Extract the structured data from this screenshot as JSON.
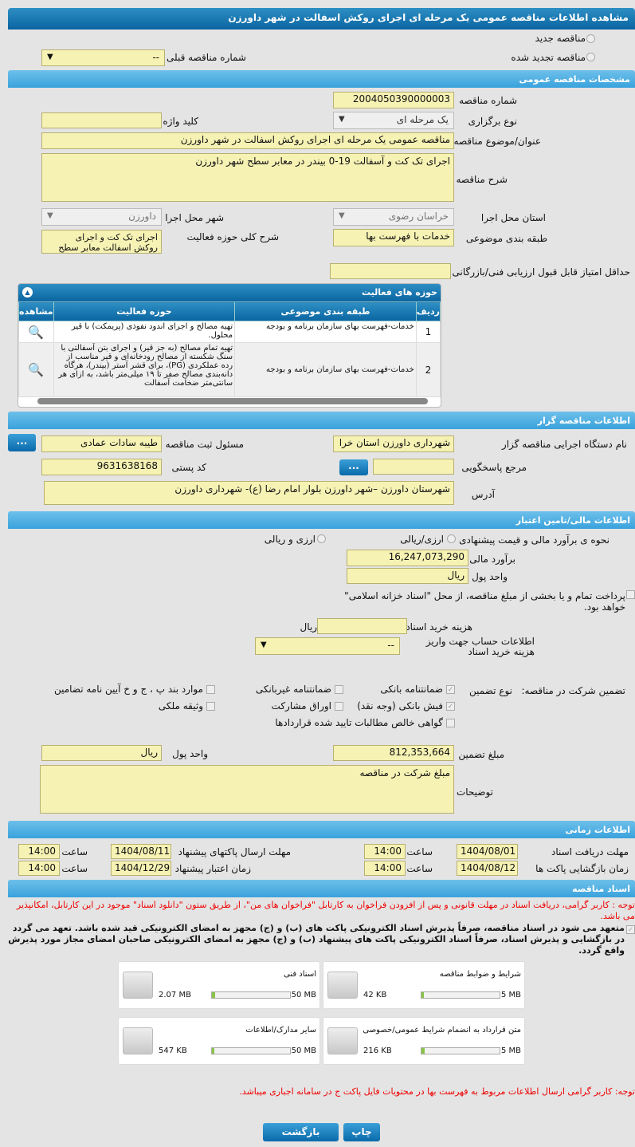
{
  "title": "مشاهده اطلاعات مناقصه عمومی یک مرحله ای اجرای روکش اسفالت در شهر داورزن",
  "tender_type": {
    "new": "مناقصه جدید",
    "renewed": "مناقصه تجدید شده",
    "prev_label": "شماره مناقصه قبلی",
    "prev_value": "--"
  },
  "general": {
    "header": "مشخصات مناقصه عمومی",
    "number_label": "شماره مناقصه",
    "number": "2004050390000003",
    "holding_label": "نوع برگزاری",
    "holding": "یک مرحله ای",
    "keyword_label": "کلید واژه",
    "keyword": "",
    "subject_label": "عنوان/موضوع مناقصه",
    "subject": "مناقصه عمومی یک مرحله ای اجرای روکش اسفالت در شهر داورزن",
    "desc_label": "شرح مناقصه",
    "desc": "اجرای تک کت و آسفالت 19-0 بیندر در معابر سطح شهر داورزن",
    "province_label": "استان محل اجرا",
    "province": "خراسان رضوی",
    "city_label": "شهر محل اجرا",
    "city": "داورزن",
    "category_label": "طبقه بندی موضوعی",
    "category": "خدمات با فهرست بها",
    "scope_label": "شرح کلی حوزه فعالیت",
    "scope": "اجرای تک کت و اجرای روکش اسفالت معابر سطح",
    "minscore_label": "حداقل امتیاز قابل قبول ارزیابی فنی/بازرگانی",
    "minscore": ""
  },
  "activities": {
    "header": "حوزه های فعالیت",
    "columns": [
      "ردیف",
      "طبقه بندی موضوعی",
      "حوزه فعالیت",
      "مشاهده"
    ],
    "rows": [
      {
        "n": "1",
        "cat": "خدمات-فهرست بهای سازمان برنامه و بودجه",
        "act": "تهیه مصالح و اجرای اندود نفوذی (پریمکت) با قیر محلول."
      },
      {
        "n": "2",
        "cat": "خدمات-فهرست بهای سازمان برنامه و بودجه",
        "act": "تهیه تمام مصالح (به جز قیر) و اجرای بتن آسفالتی با سنگ شکسته از مصالح رودخانه‌ای و قیر مناسب از رده عملکردی (PG)، برای قشر آستر (بیندر)، هرگاه دانه‌بندی مصالح صفر تا ۱۹ میلی‌متر باشد، به ازای هر سانتی‌متر ضخامت آسفالت"
      }
    ]
  },
  "organizer": {
    "header": "اطلاعات مناقصه گزار",
    "org_label": "نام دستگاه اجرایی مناقصه گزار",
    "org": "شهرداری داورزن استان خرا",
    "resp_label": "مسئول ثبت مناقصه",
    "resp": "طیبه سادات عمادی",
    "ref_label": "مرجع پاسخگویی",
    "ref": "",
    "postal_label": "کد پستی",
    "postal": "9631638168",
    "address_label": "آدرس",
    "address": "شهرستان داورزن –شهر داورزن بلوار امام رضا (ع)- شهرداری داورزن",
    "more": "..."
  },
  "finance": {
    "header": "اطلاعات مالی/تامین اعتبار",
    "method_label": "نحوه ی برآورد مالی و قیمت پیشنهادی",
    "opt1": "ارزی/ریالی",
    "opt2": "ارزی و ریالی",
    "estimate_label": "برآورد مالی",
    "estimate": "16,247,073,290",
    "currency_label": "واحد پول",
    "currency": "ریال",
    "treasury": "پرداخت تمام و یا بخشی از مبلغ مناقصه، از محل \"اسناد خزانه اسلامی\" خواهد بود.",
    "doc_cost_label": "هزینه خرید اسناد",
    "doc_cost": "",
    "doc_cost_unit": "ریال",
    "account_label": "اطلاعات حساب جهت واریز هزینه خرید اسناد",
    "account": "--"
  },
  "guarantee": {
    "label": "تضمین شرکت در مناقصه:",
    "type_label": "نوع تضمین",
    "options": [
      {
        "t": "ضمانتنامه بانکی",
        "c": true
      },
      {
        "t": "ضمانتنامه غیربانکی",
        "c": false
      },
      {
        "t": "موارد بند پ ، ج و خ آیین نامه تضامین",
        "c": false
      },
      {
        "t": "فیش بانکی (وجه نقد)",
        "c": true
      },
      {
        "t": "اوراق مشارکت",
        "c": false
      },
      {
        "t": "وثیقه ملکی",
        "c": false
      },
      {
        "t": "گواهی خالص مطالبات تایید شده قراردادها",
        "c": false
      }
    ],
    "amount_label": "مبلغ تضمین",
    "amount": "812,353,664",
    "currency_label": "واحد پول",
    "currency": "ریال",
    "notes_label": "توضیحات",
    "notes": "مبلغ شرکت در مناقصه"
  },
  "timing": {
    "header": "اطلاعات زمانی",
    "doc_recv_label": "مهلت دریافت اسناد",
    "doc_recv_date": "1404/08/01",
    "doc_recv_time": "14:00",
    "send_label": "مهلت ارسال پاکتهای پیشنهاد",
    "send_date": "1404/08/11",
    "send_time": "14:00",
    "open_label": "زمان بازگشایی پاکت ها",
    "open_date": "1404/08/12",
    "open_time": "14:00",
    "valid_label": "زمان اعتبار پیشنهاد",
    "valid_date": "1404/12/29",
    "valid_time": "14:00",
    "time_label": "ساعت"
  },
  "documents": {
    "header": "اسناد مناقصه",
    "notice": "توجه : کاربر گرامی، دریافت اسناد در مهلت قانونی و پس از افزودن فراخوان به کارتابل \"فراخوان های من\"، از طریق ستون \"دانلود اسناد\" موجود در این کارتابل، امکانپذیر می باشد.",
    "commit": "متعهد می شود در اسناد مناقصه، صرفاً پذیرش اسناد الکترونیکی پاکت های (ب) و (ج) مجهز به امضای الکترونیکی قید شده باشد. تعهد می گردد در بازگشایی و پذیرش اسناد، صرفاً اسناد الکترونیکی پاکت های پیشنهاد (ب) و (ج) مجهز به امضای الکترونیکی صاحبان امضای مجاز مورد پذیرش واقع گردد.",
    "files": [
      {
        "name": "شرایط و ضوابط مناقصه",
        "size": "42 KB",
        "max": "5 MB",
        "fill": 0.008
      },
      {
        "name": "اسناد فنی",
        "size": "2.07 MB",
        "max": "50 MB",
        "fill": 0.04
      },
      {
        "name": "متن قرارداد به انضمام شرایط عمومی/خصوصی",
        "size": "216 KB",
        "max": "5 MB",
        "fill": 0.04
      },
      {
        "name": "سایر مدارک/اطلاعات",
        "size": "547 KB",
        "max": "50 MB",
        "fill": 0.01
      }
    ],
    "note2": "توجه: کاربر گرامی ارسال اطلاعات مربوط به فهرست بها در محتویات فایل پاکت ج در سامانه اجباری میباشد."
  },
  "buttons": {
    "print": "چاپ",
    "back": "بازگشت"
  }
}
